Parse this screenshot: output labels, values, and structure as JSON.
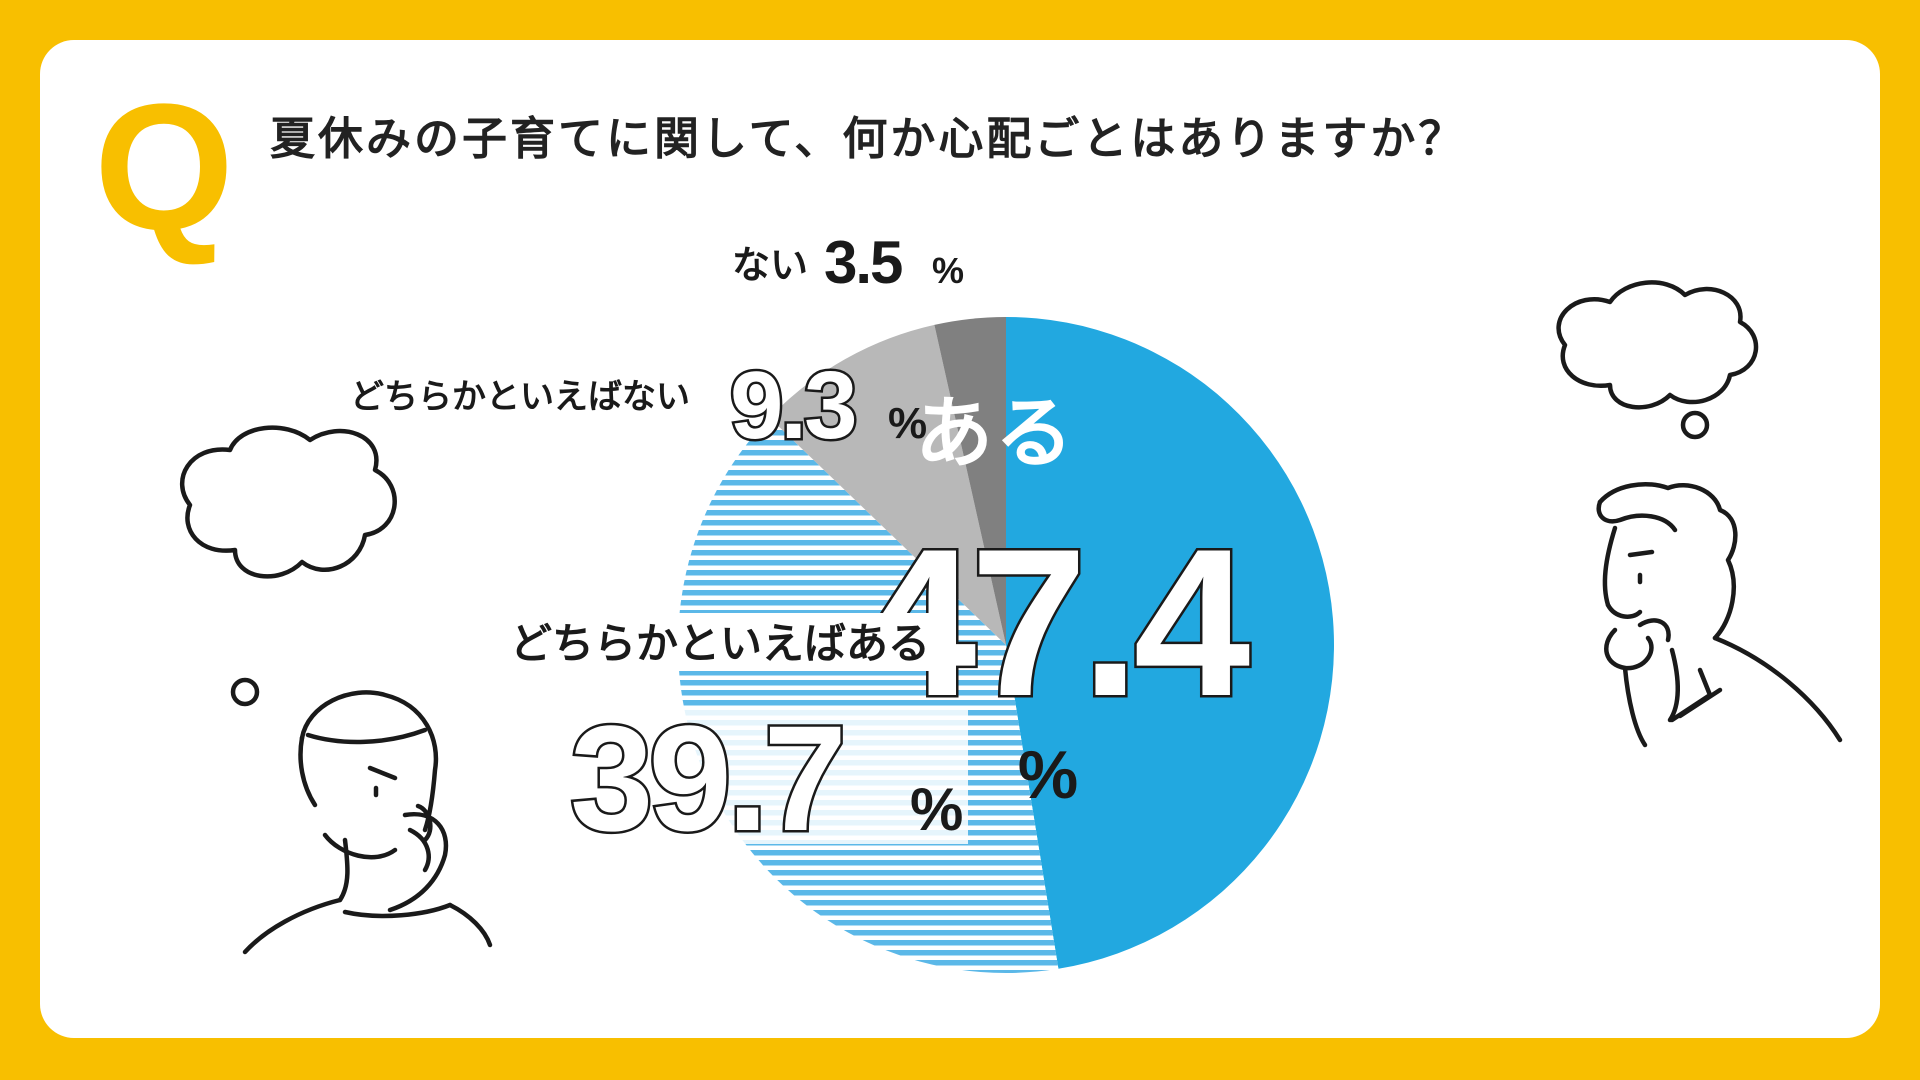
{
  "question": {
    "marker": "Q",
    "text": "夏休みの子育てに関して、何か心配ごとはありますか？"
  },
  "colors": {
    "frame": "#F8BF00",
    "aru": "#22A8E0",
    "dochiraka_aru_stripe": "#5BB8E8",
    "dochiraka_nai": "#B8B8B8",
    "nai": "#808080"
  },
  "chart_data": {
    "type": "pie",
    "start": "12 o'clock, clockwise",
    "slices": [
      {
        "label": "ある",
        "value": 47.4,
        "display": "47.4",
        "unit": "%",
        "fill": "#22A8E0",
        "pattern": "solid"
      },
      {
        "label": "どちらかといえばある",
        "value": 39.7,
        "display": "39.7",
        "unit": "%",
        "fill": "#5BB8E8",
        "pattern": "horizontal-stripes"
      },
      {
        "label": "どちらかといえばない",
        "value": 9.3,
        "display": "9.3",
        "unit": "%",
        "fill": "#B8B8B8",
        "pattern": "solid"
      },
      {
        "label": "ない",
        "value": 3.5,
        "display": "3.5",
        "unit": "%",
        "fill": "#808080",
        "pattern": "solid"
      }
    ]
  },
  "illustrations": {
    "left": "worried-person-icon",
    "right": "thinking-person-icon"
  }
}
